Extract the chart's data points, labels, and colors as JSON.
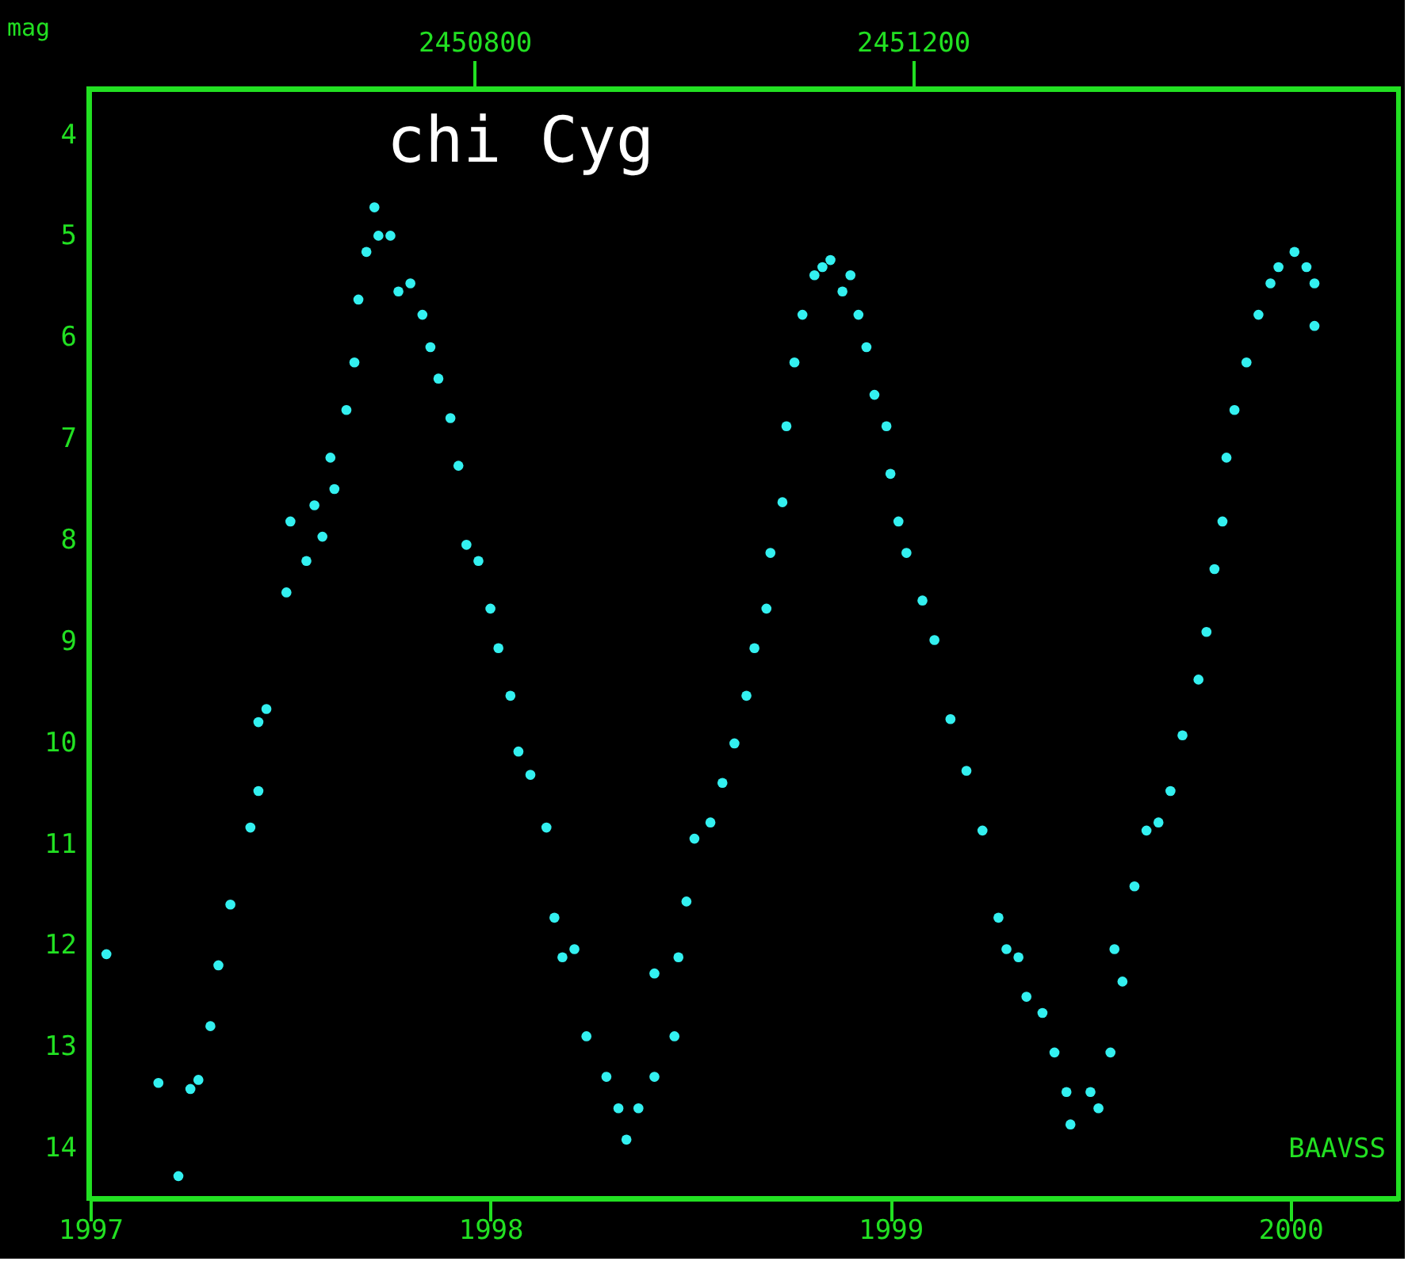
{
  "chart_data": {
    "type": "scatter",
    "title": "chi Cyg",
    "ylabel": "mag",
    "annotations": [
      "BAAVSS"
    ],
    "marker": "circle",
    "grid": false,
    "x": [
      1997.04,
      1997.17,
      1997.22,
      1997.25,
      1997.27,
      1997.3,
      1997.32,
      1997.35,
      1997.4,
      1997.42,
      1997.42,
      1997.44,
      1997.49,
      1997.5,
      1997.54,
      1997.56,
      1997.58,
      1997.6,
      1997.61,
      1997.64,
      1997.66,
      1997.67,
      1997.69,
      1997.71,
      1997.72,
      1997.75,
      1997.77,
      1997.8,
      1997.83,
      1997.85,
      1997.87,
      1997.9,
      1997.92,
      1997.94,
      1997.97,
      1998.0,
      1998.02,
      1998.05,
      1998.07,
      1998.1,
      1998.14,
      1998.16,
      1998.18,
      1998.21,
      1998.24,
      1998.29,
      1998.32,
      1998.34,
      1998.37,
      1998.41,
      1998.41,
      1998.46,
      1998.47,
      1998.49,
      1998.51,
      1998.55,
      1998.58,
      1998.61,
      1998.64,
      1998.66,
      1998.69,
      1998.7,
      1998.73,
      1998.74,
      1998.76,
      1998.78,
      1998.81,
      1998.83,
      1998.85,
      1998.88,
      1998.9,
      1998.92,
      1998.94,
      1998.96,
      1998.99,
      1999.0,
      1999.02,
      1999.04,
      1999.08,
      1999.11,
      1999.15,
      1999.19,
      1999.23,
      1999.27,
      1999.29,
      1999.32,
      1999.34,
      1999.38,
      1999.41,
      1999.44,
      1999.45,
      1999.5,
      1999.52,
      1999.55,
      1999.56,
      1999.58,
      1999.61,
      1999.64,
      1999.67,
      1999.7,
      1999.73,
      1999.77,
      1999.79,
      1999.81,
      1999.83,
      1999.84,
      1999.86,
      1999.89,
      1999.92,
      1999.95,
      1999.97,
      2000.01,
      2000.04,
      2000.06,
      2000.06
    ],
    "series": [
      {
        "color": "#33f0f0",
        "values": [
          12.09,
          13.36,
          14.28,
          13.42,
          13.33,
          12.8,
          12.2,
          11.6,
          10.84,
          10.48,
          9.8,
          9.67,
          8.52,
          7.82,
          8.21,
          7.66,
          7.97,
          7.19,
          7.5,
          6.72,
          6.25,
          5.63,
          5.16,
          4.72,
          5.0,
          5.0,
          5.55,
          5.47,
          5.78,
          6.1,
          6.41,
          6.8,
          7.27,
          8.05,
          8.21,
          8.68,
          9.07,
          9.54,
          10.09,
          10.32,
          10.84,
          11.73,
          12.12,
          12.04,
          12.9,
          13.3,
          13.61,
          13.92,
          13.61,
          13.3,
          12.28,
          12.9,
          12.12,
          11.57,
          10.95,
          10.79,
          10.4,
          10.01,
          9.54,
          9.07,
          8.68,
          8.13,
          7.63,
          6.88,
          6.25,
          5.78,
          5.39,
          5.31,
          5.24,
          5.55,
          5.39,
          5.78,
          6.1,
          6.57,
          6.88,
          7.35,
          7.82,
          8.13,
          8.6,
          8.99,
          9.77,
          10.28,
          10.87,
          11.73,
          12.04,
          12.12,
          12.51,
          12.67,
          13.06,
          13.45,
          13.77,
          13.45,
          13.61,
          13.06,
          12.04,
          12.36,
          11.42,
          10.87,
          10.79,
          10.48,
          9.93,
          9.38,
          8.91,
          8.29,
          7.82,
          7.19,
          6.72,
          6.25,
          5.78,
          5.47,
          5.31,
          5.16,
          5.31,
          5.47,
          5.89
        ]
      }
    ],
    "xlim": [
      1996.996,
      2000.27
    ],
    "xticks": [
      1997,
      1998,
      1999,
      2000
    ],
    "x2lim": [
      2450448,
      2451643
    ],
    "x2ticks": [
      2450800,
      2451200
    ],
    "ylim": [
      14.5,
      3.55
    ],
    "yticks": [
      4,
      5,
      6,
      7,
      8,
      9,
      10,
      11,
      12,
      13,
      14
    ]
  }
}
